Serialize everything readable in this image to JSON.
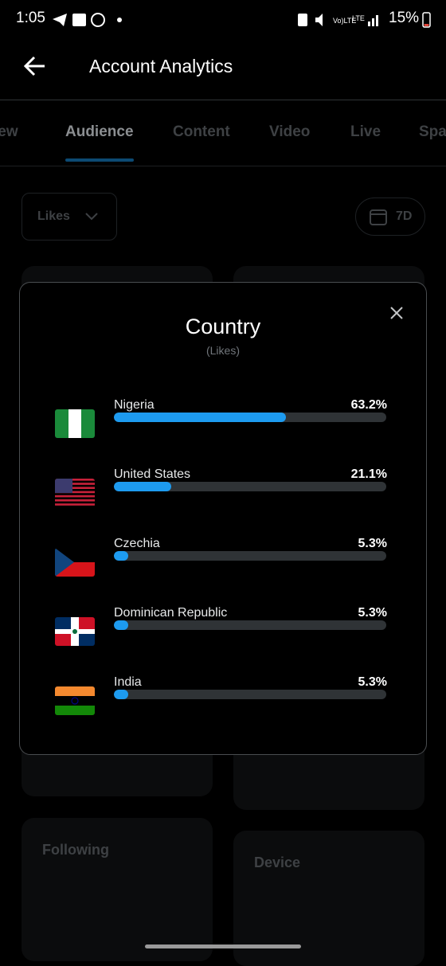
{
  "status_bar": {
    "time": "1:05",
    "battery": "15%"
  },
  "header": {
    "title": "Account Analytics"
  },
  "tabs": [
    "iew",
    "Audience",
    "Content",
    "Video",
    "Live",
    "Spa"
  ],
  "filters": {
    "metric": "Likes",
    "range": "7D"
  },
  "background_cards": [
    "Following",
    "Device"
  ],
  "modal": {
    "title": "Country",
    "subtitle": "(Likes)",
    "rows": [
      {
        "country": "Nigeria",
        "value": 63.2,
        "value_label": "63.2%"
      },
      {
        "country": "United States",
        "value": 21.1,
        "value_label": "21.1%"
      },
      {
        "country": "Czechia",
        "value": 5.3,
        "value_label": "5.3%"
      },
      {
        "country": "Dominican Republic",
        "value": 5.3,
        "value_label": "5.3%"
      },
      {
        "country": "India",
        "value": 5.3,
        "value_label": "5.3%"
      }
    ]
  }
}
